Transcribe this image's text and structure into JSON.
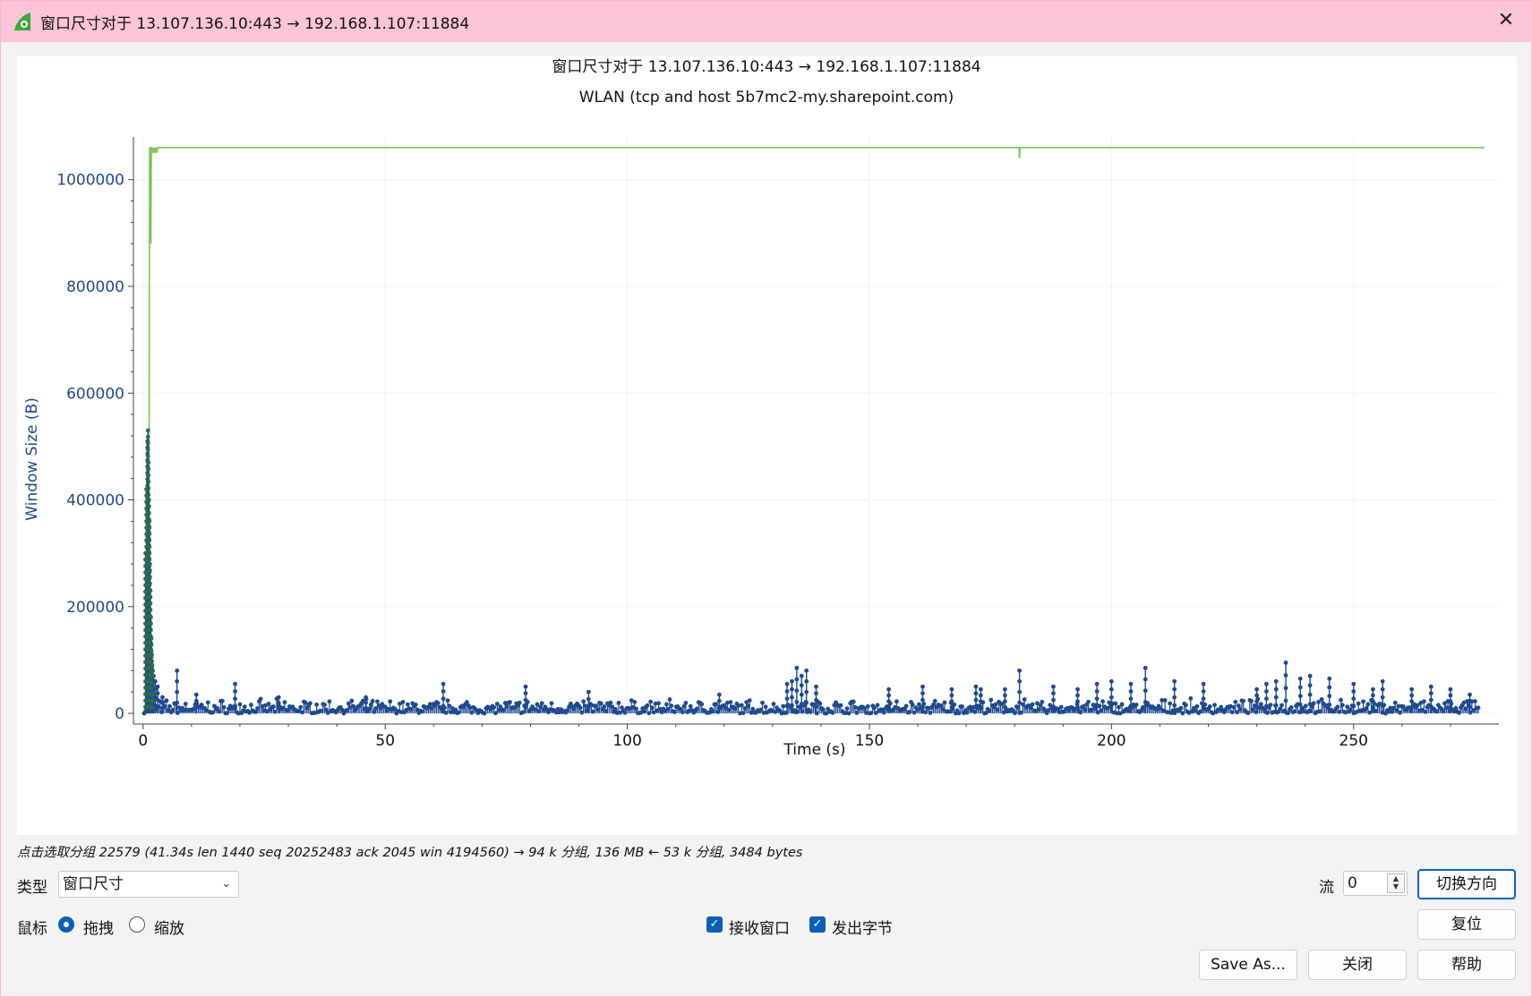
{
  "window": {
    "title": "窗口尺寸对于 13.107.136.10:443 → 192.168.1.107:11884"
  },
  "chart_data": {
    "type": "scatter",
    "title": "窗口尺寸对于 13.107.136.10:443 → 192.168.1.107:11884",
    "subtitle": "WLAN (tcp and host 5b7mc2-my.sharepoint.com)",
    "xlabel": "Time (s)",
    "ylabel": "Window Size (B)",
    "xlim": [
      -2,
      280
    ],
    "ylim": [
      -20000,
      1080000
    ],
    "x_ticks": [
      0,
      50,
      100,
      150,
      200,
      250
    ],
    "y_ticks": [
      0,
      200000,
      400000,
      600000,
      800000,
      1000000
    ],
    "x_tick_labels": [
      "0",
      "50",
      "100",
      "150",
      "200",
      "250"
    ],
    "y_tick_labels": [
      "0",
      "200000",
      "400000",
      "600000",
      "800000",
      "1000000"
    ],
    "grid": true,
    "series": [
      {
        "kind": "line",
        "color": "#7dc356",
        "x": [
          0.3,
          0.9,
          1.2,
          1.35,
          1.5,
          1.6,
          1.7,
          1.8,
          2.0,
          2.2,
          2.4,
          2.6,
          2.8,
          3.0,
          50,
          100,
          150,
          180.9,
          181.0,
          181.1,
          200,
          250,
          277
        ],
        "y": [
          0,
          50000,
          330000,
          1060000,
          1060000,
          880000,
          1060000,
          1060000,
          1050000,
          1060000,
          1050000,
          1060000,
          1050000,
          1060000,
          1060000,
          1060000,
          1060000,
          1060000,
          1040000,
          1060000,
          1060000,
          1060000,
          1060000
        ]
      },
      {
        "kind": "scatter",
        "color": "#1f4a8e",
        "spikes_x": [
          0.5,
          0.7,
          0.9,
          1.0,
          1.1,
          1.2,
          1.3,
          1.4,
          1.5,
          1.6,
          1.7,
          1.8,
          1.9,
          2.0,
          2.2,
          2.5,
          3.0,
          4.0,
          7.0,
          11,
          19,
          28,
          46,
          62,
          79,
          92,
          119,
          133,
          134,
          135,
          136,
          137,
          139,
          154,
          161,
          167,
          172,
          173,
          178,
          181,
          188,
          193,
          197,
          200,
          204,
          207,
          213,
          219,
          230,
          232,
          234,
          236,
          239,
          241,
          245,
          250,
          254,
          256,
          262,
          266,
          270,
          274
        ],
        "spikes_y": [
          300000,
          420000,
          510000,
          530000,
          470000,
          400000,
          360000,
          280000,
          230000,
          180000,
          140000,
          110000,
          90000,
          80000,
          70000,
          60000,
          50000,
          30000,
          80000,
          35000,
          55000,
          30000,
          30000,
          55000,
          50000,
          40000,
          35000,
          55000,
          60000,
          85000,
          70000,
          80000,
          50000,
          45000,
          50000,
          45000,
          50000,
          45000,
          45000,
          80000,
          50000,
          45000,
          55000,
          60000,
          55000,
          85000,
          60000,
          55000,
          45000,
          55000,
          60000,
          95000,
          65000,
          70000,
          65000,
          55000,
          45000,
          60000,
          45000,
          50000,
          45000,
          35000
        ],
        "baseline_range": [
          0,
          28000
        ]
      }
    ]
  },
  "status": {
    "text": "点击选取分组 22579 (41.34s len 1440 seq 20252483 ack 2045 win 4194560) → 94 k 分组, 136 MB ← 53 k 分组, 3484 bytes"
  },
  "controls": {
    "type_label": "类型",
    "type_value": "窗口尺寸",
    "stream_label": "流",
    "stream_value": "0",
    "switch_direction": "切换方向",
    "reset": "复位",
    "mouse_label": "鼠标",
    "drag_label": "拖拽",
    "zoom_label": "缩放",
    "mouse_mode": "drag",
    "recv_window_label": "接收窗口",
    "recv_window_checked": true,
    "bytes_out_label": "发出字节",
    "bytes_out_checked": true,
    "save_as": "Save As...",
    "close": "关闭",
    "help": "帮助"
  }
}
